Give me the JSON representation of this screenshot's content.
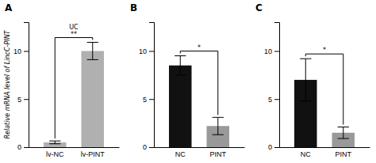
{
  "chart_data": [
    {
      "type": "bar",
      "title": "A",
      "categories": [
        "lv-NC",
        "lv-PINT"
      ],
      "values": [
        0.5,
        10.0
      ],
      "errors": [
        0.15,
        0.9
      ],
      "colors": [
        "#b0b0b0",
        "#b0b0b0"
      ],
      "ylabel": "Relative mRNA level of LincC-PINT",
      "ylim": [
        0,
        13
      ],
      "yticks": [
        0,
        5,
        10
      ],
      "annotations": [
        "UC",
        "**"
      ]
    },
    {
      "type": "bar",
      "title": "B",
      "categories": [
        "NC",
        "PINT"
      ],
      "values": [
        8.5,
        2.2
      ],
      "errors": [
        1.0,
        0.9
      ],
      "colors": [
        "#111111",
        "#999999"
      ],
      "ylim": [
        0,
        13
      ],
      "yticks": [
        0,
        5,
        10
      ],
      "annotations": [
        "*"
      ]
    },
    {
      "type": "bar",
      "title": "C",
      "categories": [
        "NC",
        "PINT"
      ],
      "values": [
        7.0,
        1.5
      ],
      "errors": [
        2.2,
        0.6
      ],
      "colors": [
        "#111111",
        "#999999"
      ],
      "ylim": [
        0,
        13
      ],
      "yticks": [
        0,
        5,
        10
      ],
      "annotations": [
        "*"
      ]
    }
  ]
}
